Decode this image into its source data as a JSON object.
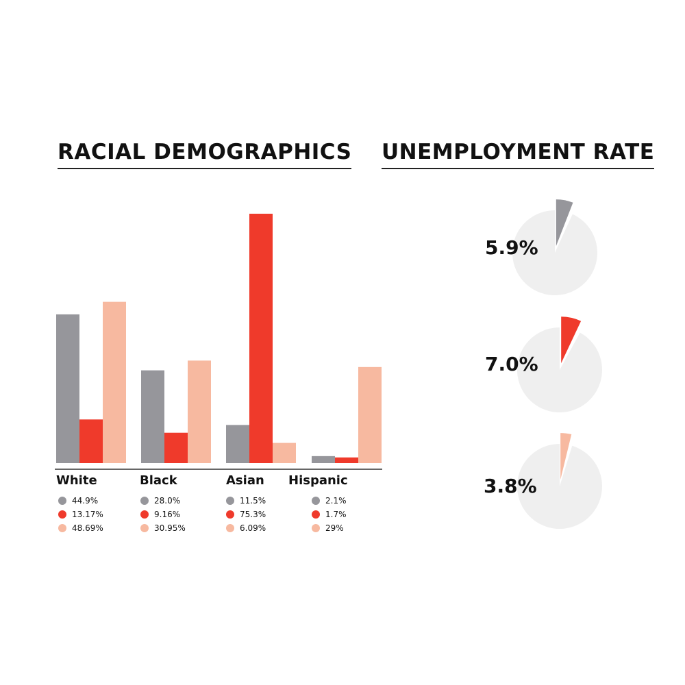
{
  "colors": {
    "gray": "#96969b",
    "red": "#ef3a2b",
    "peach": "#f7b9a0",
    "pie_base": "#efefef",
    "axis": "#333333"
  },
  "chart_data": [
    {
      "type": "bar",
      "title": "RACIAL DEMOGRAPHICS",
      "categories": [
        "White",
        "Black",
        "Asian",
        "Hispanic"
      ],
      "series": [
        {
          "values": [
            44.9,
            28.0,
            11.5,
            2.1
          ],
          "labels": [
            "44.9%",
            "28.0%",
            "11.5%",
            "2.1%"
          ],
          "color": "#96969b"
        },
        {
          "values": [
            13.17,
            9.16,
            75.3,
            1.7
          ],
          "labels": [
            "13.17%",
            "9.16%",
            "75.3%",
            "1.7%"
          ],
          "color": "#ef3a2b"
        },
        {
          "values": [
            48.69,
            30.95,
            6.09,
            29
          ],
          "labels": [
            "48.69%",
            "30.95%",
            "6.09%",
            "29%"
          ],
          "color": "#f7b9a0"
        }
      ],
      "grid": false,
      "legend": "below each category"
    },
    {
      "type": "pie",
      "title": "UNEMPLOYMENT RATE",
      "slices": [
        {
          "value": 5.9,
          "label": "5.9%",
          "color": "#96969b"
        },
        {
          "value": 7.0,
          "label": "7.0%",
          "color": "#ef3a2b"
        },
        {
          "value": 3.8,
          "label": "3.8%",
          "color": "#f7b9a0"
        }
      ]
    }
  ]
}
